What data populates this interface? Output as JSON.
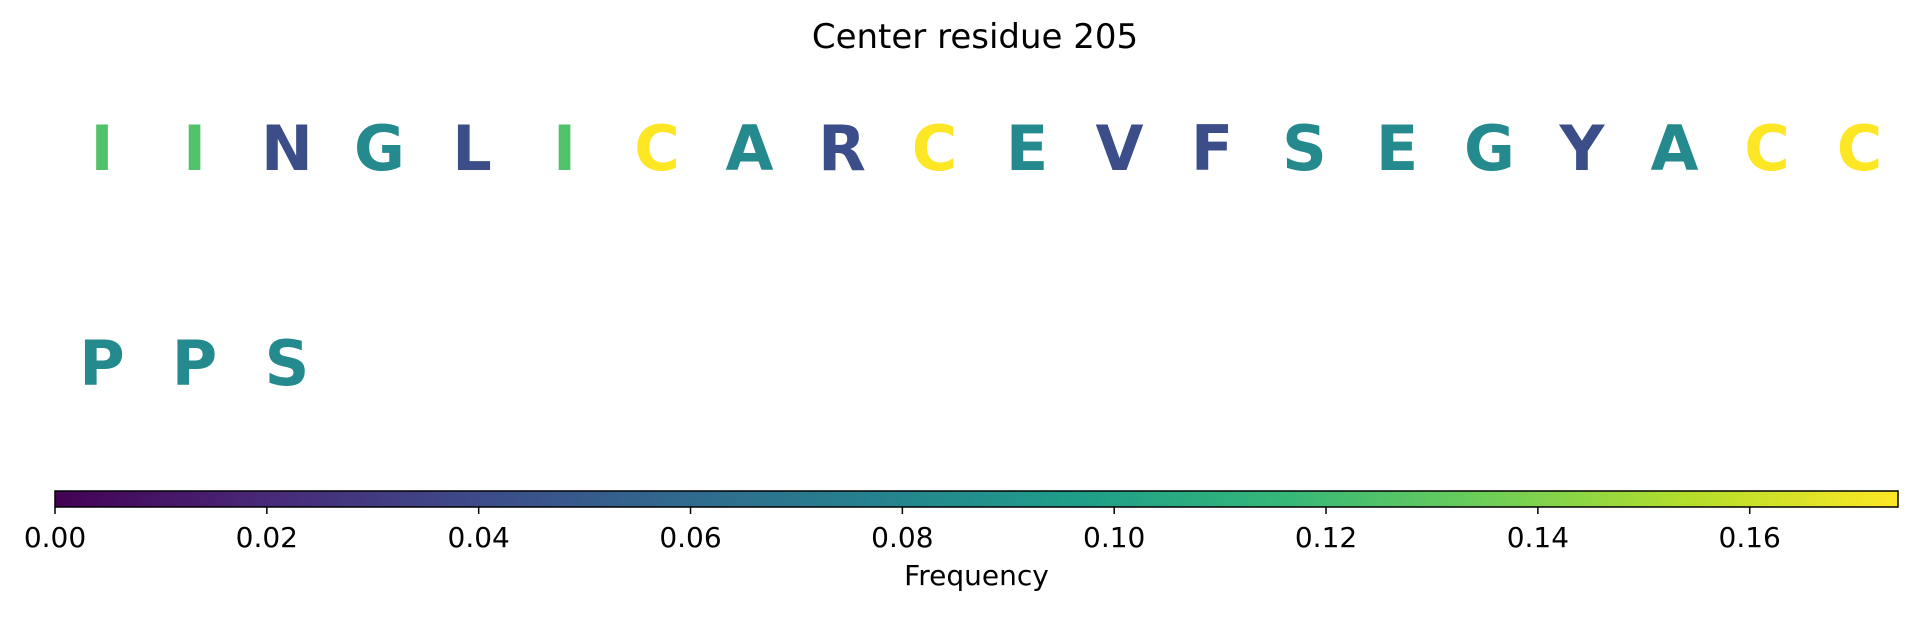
{
  "chart_data": {
    "type": "table",
    "title": "Center residue 205",
    "residues": [
      {
        "letter": "I",
        "frequency": 0.125
      },
      {
        "letter": "I",
        "frequency": 0.125
      },
      {
        "letter": "N",
        "frequency": 0.042
      },
      {
        "letter": "G",
        "frequency": 0.083
      },
      {
        "letter": "L",
        "frequency": 0.042
      },
      {
        "letter": "I",
        "frequency": 0.125
      },
      {
        "letter": "C",
        "frequency": 0.174
      },
      {
        "letter": "A",
        "frequency": 0.083
      },
      {
        "letter": "R",
        "frequency": 0.042
      },
      {
        "letter": "C",
        "frequency": 0.174
      },
      {
        "letter": "E",
        "frequency": 0.083
      },
      {
        "letter": "V",
        "frequency": 0.042
      },
      {
        "letter": "F",
        "frequency": 0.042
      },
      {
        "letter": "S",
        "frequency": 0.083
      },
      {
        "letter": "E",
        "frequency": 0.083
      },
      {
        "letter": "G",
        "frequency": 0.083
      },
      {
        "letter": "Y",
        "frequency": 0.042
      },
      {
        "letter": "A",
        "frequency": 0.083
      },
      {
        "letter": "C",
        "frequency": 0.174
      },
      {
        "letter": "C",
        "frequency": 0.174
      },
      {
        "letter": "P",
        "frequency": 0.083
      },
      {
        "letter": "P",
        "frequency": 0.083
      },
      {
        "letter": "S",
        "frequency": 0.083
      }
    ],
    "colorbar": {
      "label": "Frequency",
      "colormap": "viridis",
      "range": [
        0,
        0.174
      ],
      "ticks": [
        "0.00",
        "0.02",
        "0.04",
        "0.06",
        "0.08",
        "0.10",
        "0.12",
        "0.14",
        "0.16"
      ]
    },
    "colors": {
      "viridis": [
        "#440154",
        "#482878",
        "#3e4989",
        "#31688e",
        "#26828e",
        "#1f9e89",
        "#35b779",
        "#6ece58",
        "#b5de2b",
        "#fde725"
      ]
    }
  }
}
